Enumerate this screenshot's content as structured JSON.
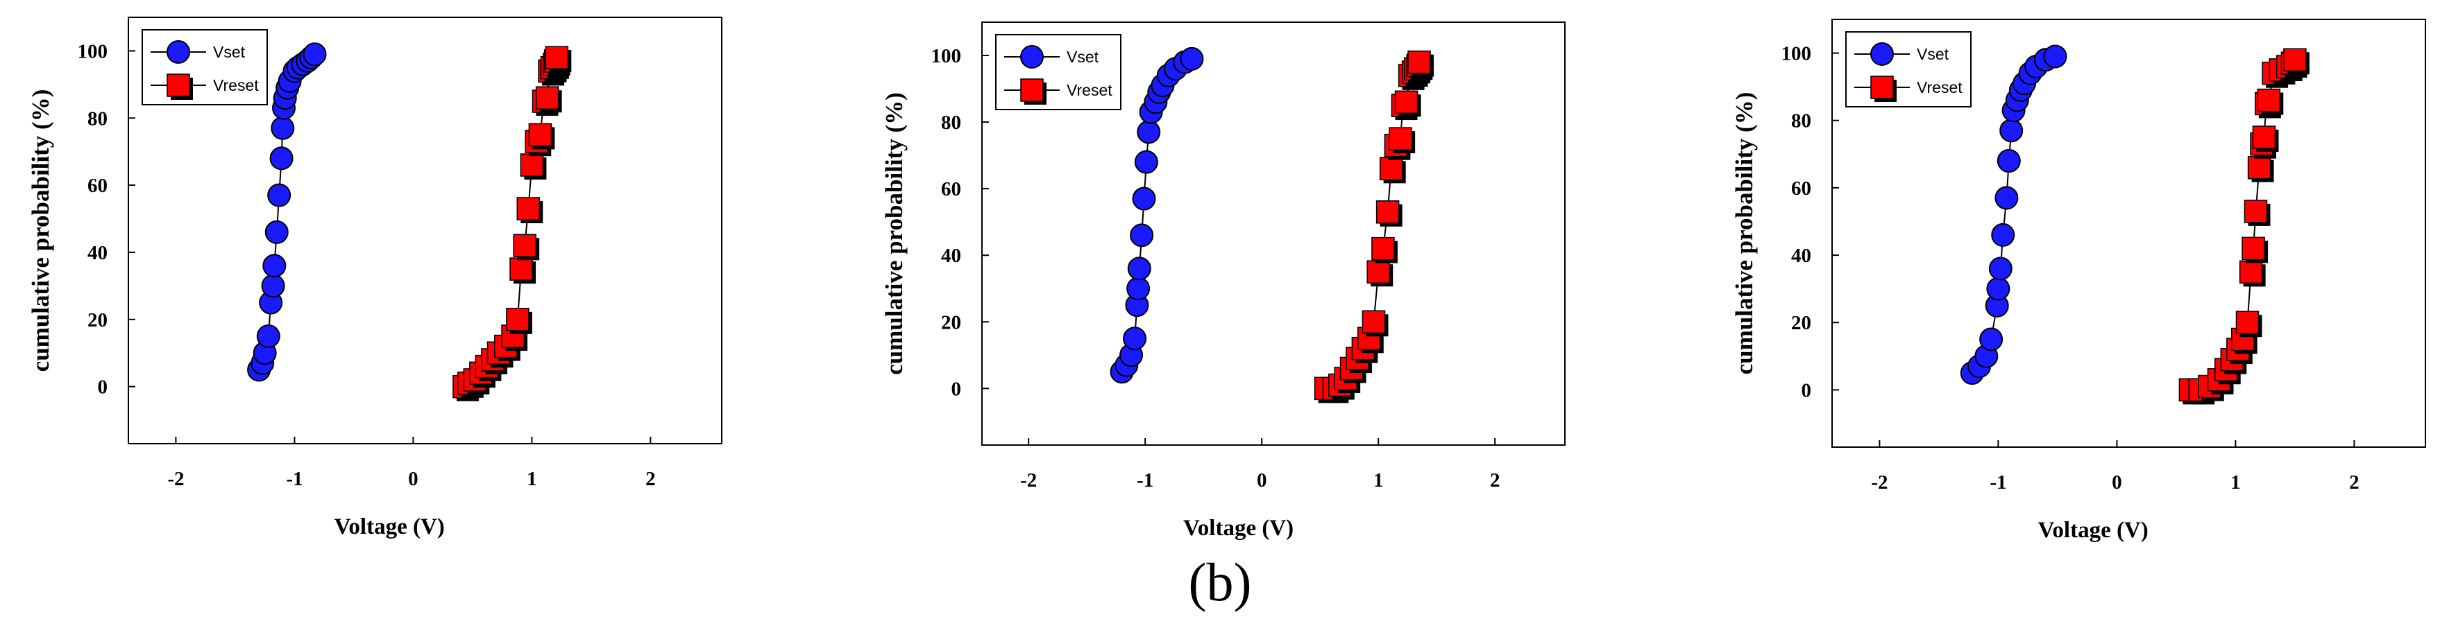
{
  "caption": "(b)",
  "colors": {
    "vset": "#1a1aff",
    "vreset": "#ff0000",
    "stroke": "#000000"
  },
  "chart_data": [
    {
      "type": "scatter",
      "xlabel": "Voltage (V)",
      "ylabel": "cumulative probability (%)",
      "xlim": [
        -2.4,
        2.6
      ],
      "ylim": [
        -17,
        110
      ],
      "xticks": [
        -2,
        -1,
        0,
        1,
        2
      ],
      "yticks": [
        0,
        20,
        40,
        60,
        80,
        100
      ],
      "legend": "top-left",
      "series": [
        {
          "name": "Vset",
          "marker": "circle",
          "x": [
            -1.3,
            -1.27,
            -1.25,
            -1.22,
            -1.2,
            -1.18,
            -1.17,
            -1.15,
            -1.13,
            -1.11,
            -1.1,
            -1.09,
            -1.08,
            -1.06,
            -1.04,
            -1.0,
            -0.97,
            -0.93,
            -0.89,
            -0.86,
            -0.83
          ],
          "y": [
            5,
            7,
            10,
            15,
            25,
            30,
            36,
            46,
            57,
            68,
            77,
            83,
            86,
            89,
            91,
            94,
            95,
            96,
            97,
            98,
            99
          ]
        },
        {
          "name": "Vreset",
          "marker": "square",
          "x": [
            0.43,
            0.47,
            0.52,
            0.57,
            0.62,
            0.67,
            0.72,
            0.78,
            0.84,
            0.88,
            0.91,
            0.94,
            0.97,
            1.0,
            1.04,
            1.07,
            1.1,
            1.13,
            1.15,
            1.17,
            1.19,
            1.2,
            1.21
          ],
          "y": [
            0,
            1,
            2,
            4,
            6,
            8,
            10,
            12,
            15,
            20,
            35,
            42,
            53,
            66,
            73,
            75,
            85,
            86,
            94,
            95,
            96,
            97,
            98
          ]
        }
      ]
    },
    {
      "type": "scatter",
      "xlabel": "Voltage (V)",
      "ylabel": "cumulative probability (%)",
      "xlim": [
        -2.4,
        2.6
      ],
      "ylim": [
        -17,
        110
      ],
      "xticks": [
        -2,
        -1,
        0,
        1,
        2
      ],
      "yticks": [
        0,
        20,
        40,
        60,
        80,
        100
      ],
      "legend": "top-left",
      "series": [
        {
          "name": "Vset",
          "marker": "circle",
          "x": [
            -1.2,
            -1.16,
            -1.12,
            -1.09,
            -1.07,
            -1.06,
            -1.05,
            -1.03,
            -1.01,
            -0.99,
            -0.97,
            -0.95,
            -0.91,
            -0.88,
            -0.85,
            -0.8,
            -0.74,
            -0.66,
            -0.6
          ],
          "y": [
            5,
            7,
            10,
            15,
            25,
            30,
            36,
            46,
            57,
            68,
            77,
            83,
            86,
            89,
            91,
            94,
            96,
            98,
            99
          ]
        },
        {
          "name": "Vreset",
          "marker": "square",
          "x": [
            0.55,
            0.62,
            0.67,
            0.72,
            0.77,
            0.82,
            0.87,
            0.92,
            0.96,
            1.0,
            1.04,
            1.08,
            1.11,
            1.15,
            1.19,
            1.21,
            1.24,
            1.27,
            1.3,
            1.32,
            1.34,
            1.35
          ],
          "y": [
            0,
            0,
            1,
            3,
            6,
            9,
            12,
            15,
            20,
            35,
            42,
            53,
            66,
            73,
            75,
            85,
            86,
            94,
            95,
            96,
            97,
            98
          ]
        }
      ]
    },
    {
      "type": "scatter",
      "xlabel": "Voltage (V)",
      "ylabel": "cumulative probability (%)",
      "xlim": [
        -2.4,
        2.6
      ],
      "ylim": [
        -17,
        110
      ],
      "xticks": [
        -2,
        -1,
        0,
        1,
        2
      ],
      "yticks": [
        0,
        20,
        40,
        60,
        80,
        100
      ],
      "legend": "top-left",
      "series": [
        {
          "name": "Vset",
          "marker": "circle",
          "x": [
            -1.22,
            -1.16,
            -1.1,
            -1.06,
            -1.01,
            -1.0,
            -0.98,
            -0.96,
            -0.93,
            -0.91,
            -0.89,
            -0.87,
            -0.84,
            -0.81,
            -0.78,
            -0.73,
            -0.68,
            -0.6,
            -0.52
          ],
          "y": [
            5,
            7,
            10,
            15,
            25,
            30,
            36,
            46,
            57,
            68,
            77,
            83,
            86,
            89,
            91,
            94,
            96,
            98,
            99
          ]
        },
        {
          "name": "Vreset",
          "marker": "square",
          "x": [
            0.62,
            0.7,
            0.78,
            0.86,
            0.92,
            0.97,
            1.02,
            1.06,
            1.1,
            1.13,
            1.15,
            1.17,
            1.2,
            1.22,
            1.24,
            1.26,
            1.28,
            1.32,
            1.38,
            1.44,
            1.48,
            1.5
          ],
          "y": [
            0,
            0,
            1,
            3,
            6,
            9,
            12,
            15,
            20,
            35,
            42,
            53,
            66,
            73,
            75,
            85,
            86,
            94,
            95,
            96,
            97,
            98
          ]
        }
      ]
    }
  ]
}
